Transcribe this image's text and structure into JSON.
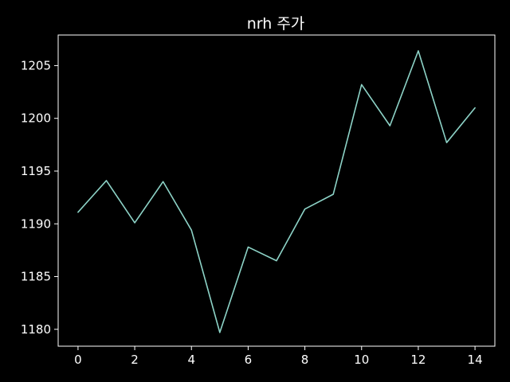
{
  "chart_data": {
    "type": "line",
    "title": "nrh 주가",
    "xlabel": "",
    "ylabel": "",
    "xlim": [
      -0.7,
      14.7
    ],
    "ylim": [
      1178.4,
      1207.9
    ],
    "x_ticks": [
      0,
      2,
      4,
      6,
      8,
      10,
      12,
      14
    ],
    "y_ticks": [
      1180,
      1185,
      1190,
      1195,
      1200,
      1205
    ],
    "grid": false,
    "legend": "none",
    "series": [
      {
        "color": "#8dd3c7",
        "x": [
          0,
          1,
          2,
          3,
          4,
          5,
          6,
          7,
          8,
          9,
          10,
          11,
          12,
          13,
          14
        ],
        "values": [
          1191.1,
          1194.1,
          1190.1,
          1194.0,
          1189.4,
          1179.7,
          1187.8,
          1186.5,
          1191.4,
          1192.8,
          1203.2,
          1199.3,
          1206.4,
          1197.7,
          1201.0
        ]
      }
    ]
  },
  "colors": {
    "background": "#000000",
    "axes": "#ffffff",
    "text": "#ffffff"
  }
}
